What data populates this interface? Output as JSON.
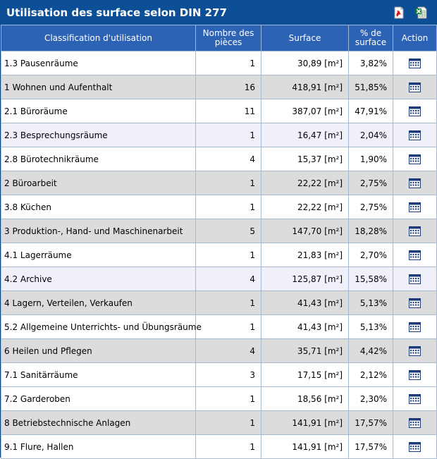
{
  "header": {
    "title": "Utilisation des surface selon DIN 277"
  },
  "icons": {
    "pdf": "pdf-export-icon",
    "excel": "excel-export-icon",
    "action": "calendar-icon"
  },
  "columns": {
    "classification": "Classification d'utilisation",
    "rooms": "Nombre des pièces",
    "surface": "Surface",
    "percent": "% de surface",
    "action": "Action"
  },
  "rows": [
    {
      "label": "1.3 Pausenräume",
      "rooms": "1",
      "surface": "30,89 [m²]",
      "percent": "3,82%"
    },
    {
      "label": "1 Wohnen und Aufenthalt",
      "rooms": "16",
      "surface": "418,91 [m²]",
      "percent": "51,85%"
    },
    {
      "label": "2.1 Büroräume",
      "rooms": "11",
      "surface": "387,07 [m²]",
      "percent": "47,91%"
    },
    {
      "label": "2.3 Besprechungsräume",
      "rooms": "1",
      "surface": "16,47 [m²]",
      "percent": "2,04%"
    },
    {
      "label": "2.8 Bürotechnikräume",
      "rooms": "4",
      "surface": "15,37 [m²]",
      "percent": "1,90%"
    },
    {
      "label": "2 Büroarbeit",
      "rooms": "1",
      "surface": "22,22 [m²]",
      "percent": "2,75%"
    },
    {
      "label": "3.8 Küchen",
      "rooms": "1",
      "surface": "22,22 [m²]",
      "percent": "2,75%"
    },
    {
      "label": "3 Produktion-, Hand- und Maschinenarbeit",
      "rooms": "5",
      "surface": "147,70 [m²]",
      "percent": "18,28%"
    },
    {
      "label": "4.1 Lagerräume",
      "rooms": "1",
      "surface": "21,83 [m²]",
      "percent": "2,70%"
    },
    {
      "label": "4.2 Archive",
      "rooms": "4",
      "surface": "125,87 [m²]",
      "percent": "15,58%"
    },
    {
      "label": "4 Lagern, Verteilen, Verkaufen",
      "rooms": "1",
      "surface": "41,43 [m²]",
      "percent": "5,13%"
    },
    {
      "label": "5.2 Allgemeine Unterrichts- und Übungsräume",
      "rooms": "1",
      "surface": "41,43 [m²]",
      "percent": "5,13%"
    },
    {
      "label": "6 Heilen und Pflegen",
      "rooms": "4",
      "surface": "35,71 [m²]",
      "percent": "4,42%"
    },
    {
      "label": "7.1 Sanitärräume",
      "rooms": "3",
      "surface": "17,15 [m²]",
      "percent": "2,12%"
    },
    {
      "label": "7.2 Garderoben",
      "rooms": "1",
      "surface": "18,56 [m²]",
      "percent": "2,30%"
    },
    {
      "label": "8 Betriebstechnische Anlagen",
      "rooms": "1",
      "surface": "141,91 [m²]",
      "percent": "17,57%"
    },
    {
      "label": "9.1 Flure, Hallen",
      "rooms": "1",
      "surface": "141,91 [m²]",
      "percent": "17,57%"
    }
  ]
}
